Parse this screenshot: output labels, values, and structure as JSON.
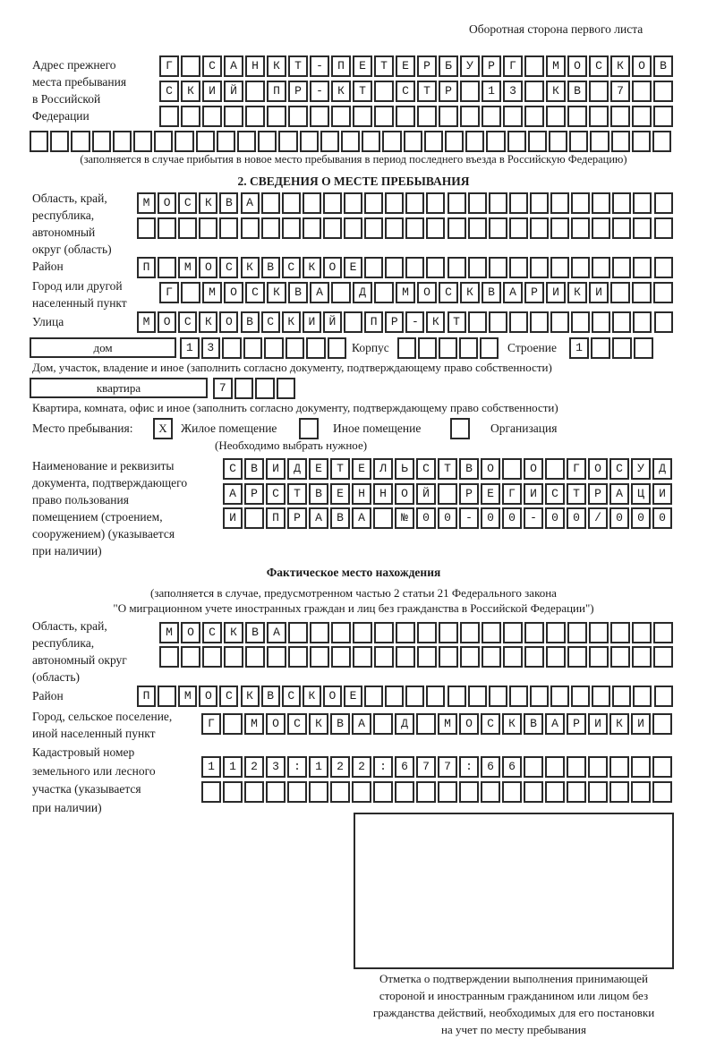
{
  "header": "Оборотная сторона первого листа",
  "prev_address": {
    "label": [
      "Адрес прежнего",
      "места пребывания",
      "в Российской",
      "Федерации"
    ],
    "rows": [
      "Г САНКТ-ПЕТЕРБУРГ МОСКОВ",
      "СКИЙ ПР-КТ СТР 13 КВ 7",
      "",
      ""
    ],
    "note": "(заполняется в случае прибытия в новое место пребывания в период последнего въезда в Российскую Федерацию)"
  },
  "section2": {
    "title": "2. СВЕДЕНИЯ О МЕСТЕ ПРЕБЫВАНИЯ",
    "region_label": [
      "Область, край,",
      "республика,",
      "автономный",
      "округ (область)"
    ],
    "region_rows": [
      "МОСКВА",
      ""
    ],
    "district_label": "Район",
    "district_row": "П МОСКВСКОЕ",
    "city_label": [
      "Город или другой",
      "населенный пункт"
    ],
    "city_row": "Г МОСКВА Д МОСКВАРИКИ",
    "street_label": "Улица",
    "street_row": "МОСКОВСКИЙ ПР-КТ",
    "house_type": "дом",
    "house_row": "13",
    "korpus_label": "Корпус",
    "korpus_row": "",
    "building_label": "Строение",
    "building_row": "1",
    "house_note": "Дом, участок, владение и иное (заполнить согласно документу, подтверждающему право собственности)",
    "flat_type": "квартира",
    "flat_row": "7",
    "flat_note": "Квартира, комната, офис и иное (заполнить согласно документу, подтверждающему право собственности)",
    "stay_label": "Место пребывания:",
    "stay_options": [
      {
        "label": "Жилое помещение",
        "mark": "X"
      },
      {
        "label": "Иное помещение",
        "mark": ""
      },
      {
        "label": "Организация",
        "mark": ""
      }
    ],
    "stay_note": "(Необходимо выбрать нужное)",
    "doc_label": [
      "Наименование и реквизиты",
      "документа, подтверждающего",
      "право пользования",
      "помещением (строением,",
      "сооружением) (указывается",
      "при наличии)"
    ],
    "doc_rows": [
      "СВИДЕТЕЛЬСТВО О ГОСУД",
      "АРСТВЕННОЙ РЕГИСТРАЦИ",
      "И ПРАВА №00-00-00/000"
    ]
  },
  "actual": {
    "title": "Фактическое место нахождения",
    "note": [
      "(заполняется в случае, предусмотренном частью 2 статьи 21 Федерального закона",
      "\"О миграционном учете иностранных граждан и лиц без гражданства в Российской Федерации\")"
    ],
    "region_label": [
      "Область, край,",
      "республика,",
      "автономный округ",
      "(область)"
    ],
    "region_rows": [
      "МОСКВА",
      ""
    ],
    "district_label": "Район",
    "district_row": "П МОСКВСКОЕ",
    "city_label": [
      "Город, сельское поселение,",
      "иной населенный пункт"
    ],
    "city_row": "Г МОСКВА Д МОСКВАРИКИ",
    "cadastral_label": [
      "Кадастровый номер",
      "земельного или лесного",
      "участка (указывается",
      "при наличии)"
    ],
    "cadastral_rows": [
      "1123:122:677:66",
      ""
    ]
  },
  "stamp_caption": [
    "Отметка о подтверждении выполнения принимающей",
    "стороной и иностранным гражданином или лицом без",
    "гражданства действий, необходимых для его постановки",
    "на учет по месту пребывания"
  ]
}
